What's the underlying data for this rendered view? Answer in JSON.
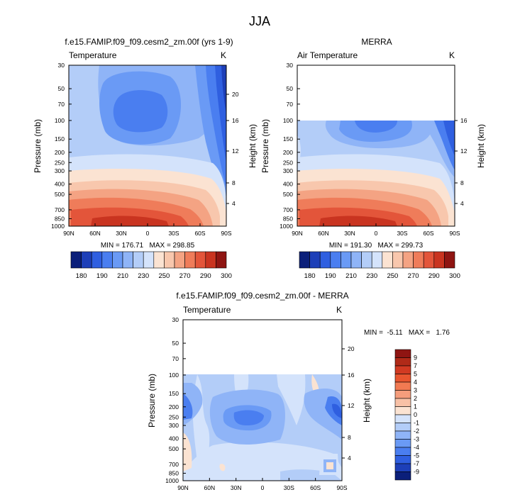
{
  "figure_title": "JJA",
  "chart_data": [
    {
      "type": "heatmap",
      "title": "f.e15.FAMIP.f09_f09.cesm2_zm.00f (yrs 1-9)",
      "subtitle_left": "Temperature",
      "units": "K",
      "ylabel": "Pressure (mb)",
      "ylabel_right": "Height (km)",
      "x_ticks": [
        "90N",
        "60N",
        "30N",
        "0",
        "30S",
        "60S",
        "90S"
      ],
      "y_ticks": [
        "30",
        "50",
        "70",
        "100",
        "150",
        "200",
        "250",
        "300",
        "400",
        "500",
        "700",
        "850",
        "1000"
      ],
      "height_ticks": [
        "20",
        "16",
        "12",
        "8",
        "4"
      ],
      "stats_text": "MIN = 176.71   MAX = 298.85",
      "min": 176.71,
      "max": 298.85,
      "colorbar": {
        "labels": [
          "180",
          "190",
          "210",
          "230",
          "250",
          "270",
          "290",
          "300"
        ]
      }
    },
    {
      "type": "heatmap",
      "title": "MERRA",
      "subtitle_left": "Air Temperature",
      "units": "K",
      "ylabel": "Pressure (mb)",
      "ylabel_right": "Height (km)",
      "x_ticks": [
        "90N",
        "60N",
        "30N",
        "0",
        "30S",
        "60S",
        "90S"
      ],
      "y_ticks": [
        "30",
        "50",
        "70",
        "100",
        "150",
        "200",
        "250",
        "300",
        "400",
        "500",
        "700",
        "850",
        "1000"
      ],
      "height_ticks": [
        "16",
        "12",
        "8",
        "4"
      ],
      "stats_text": "MIN = 191.30   MAX = 299.73",
      "min": 191.3,
      "max": 299.73,
      "colorbar": {
        "labels": [
          "180",
          "190",
          "210",
          "230",
          "250",
          "270",
          "290",
          "300"
        ]
      }
    },
    {
      "type": "heatmap",
      "title": "f.e15.FAMIP.f09_f09.cesm2_zm.00f - MERRA",
      "subtitle_left": "Temperature",
      "units": "K",
      "ylabel": "Pressure (mb)",
      "ylabel_right": "Height (km)",
      "x_ticks": [
        "90N",
        "60N",
        "30N",
        "0",
        "30S",
        "60S",
        "90S"
      ],
      "y_ticks": [
        "30",
        "50",
        "70",
        "100",
        "150",
        "200",
        "250",
        "300",
        "400",
        "500",
        "700",
        "850",
        "1000"
      ],
      "height_ticks": [
        "20",
        "16",
        "12",
        "8",
        "4"
      ],
      "stats_text": "MIN =  -5.11   MAX =   1.76",
      "min": -5.11,
      "max": 1.76,
      "colorbar": {
        "labels": [
          "9",
          "7",
          "5",
          "4",
          "3",
          "2",
          "1",
          "0",
          "-1",
          "-2",
          "-3",
          "-4",
          "-5",
          "-7",
          "-9"
        ]
      }
    }
  ],
  "colors": {
    "temp_scale": [
      "#0b1f7a",
      "#1d3fb8",
      "#2f5fe0",
      "#4a7ef0",
      "#6a9af5",
      "#8fb4f7",
      "#b3cdf8",
      "#d4e3fb",
      "#fbe3d2",
      "#f8c7ad",
      "#f4a383",
      "#ef7c5a",
      "#e3553a",
      "#c93420",
      "#8f1512"
    ],
    "diff_scale": [
      "#8f1512",
      "#b02a18",
      "#d13a22",
      "#e8552f",
      "#f27a52",
      "#f59d7c",
      "#f8c1a6",
      "#fbe3d2",
      "#d4e3fb",
      "#b3cdf8",
      "#8fb4f7",
      "#6a9af5",
      "#4a7ef0",
      "#2f5fe0",
      "#1d3fb8",
      "#0b1f7a"
    ]
  }
}
